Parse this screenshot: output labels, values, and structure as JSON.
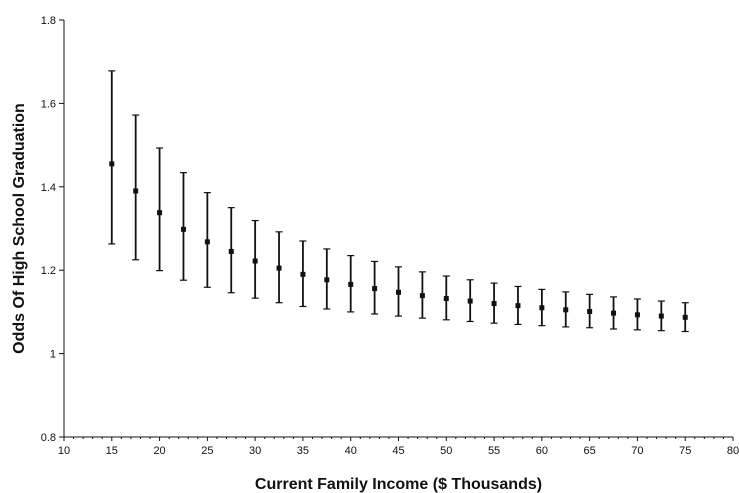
{
  "chart_data": {
    "type": "scatter",
    "title": "",
    "xlabel": "Current Family Income ($ Thousands)",
    "ylabel": "Odds Of High School Graduation",
    "xlim": [
      10,
      80
    ],
    "ylim": [
      0.8,
      1.8
    ],
    "x_ticks": [
      10,
      15,
      20,
      25,
      30,
      35,
      40,
      45,
      50,
      55,
      60,
      65,
      70,
      75,
      80
    ],
    "y_ticks": [
      {
        "value": 0.8,
        "label": "0.8"
      },
      {
        "value": 1.0,
        "label": "1"
      },
      {
        "value": 1.2,
        "label": "1.2"
      },
      {
        "value": 1.4,
        "label": "1.4"
      },
      {
        "value": 1.6,
        "label": "1.6"
      },
      {
        "value": 1.8,
        "label": "1.8"
      }
    ],
    "grid": false,
    "error_bars": true,
    "points": [
      {
        "x": 15,
        "y": 1.455,
        "lower": 1.263,
        "upper": 1.678
      },
      {
        "x": 17.5,
        "y": 1.39,
        "lower": 1.225,
        "upper": 1.572
      },
      {
        "x": 20,
        "y": 1.338,
        "lower": 1.199,
        "upper": 1.493
      },
      {
        "x": 22.5,
        "y": 1.298,
        "lower": 1.176,
        "upper": 1.434
      },
      {
        "x": 25,
        "y": 1.268,
        "lower": 1.159,
        "upper": 1.386
      },
      {
        "x": 27.5,
        "y": 1.245,
        "lower": 1.146,
        "upper": 1.35
      },
      {
        "x": 30,
        "y": 1.222,
        "lower": 1.133,
        "upper": 1.319
      },
      {
        "x": 32.5,
        "y": 1.205,
        "lower": 1.122,
        "upper": 1.292
      },
      {
        "x": 35,
        "y": 1.19,
        "lower": 1.113,
        "upper": 1.27
      },
      {
        "x": 37.5,
        "y": 1.177,
        "lower": 1.107,
        "upper": 1.251
      },
      {
        "x": 40,
        "y": 1.166,
        "lower": 1.1,
        "upper": 1.235
      },
      {
        "x": 42.5,
        "y": 1.156,
        "lower": 1.095,
        "upper": 1.221
      },
      {
        "x": 45,
        "y": 1.147,
        "lower": 1.09,
        "upper": 1.208
      },
      {
        "x": 47.5,
        "y": 1.139,
        "lower": 1.085,
        "upper": 1.196
      },
      {
        "x": 50,
        "y": 1.132,
        "lower": 1.081,
        "upper": 1.186
      },
      {
        "x": 52.5,
        "y": 1.126,
        "lower": 1.077,
        "upper": 1.177
      },
      {
        "x": 55,
        "y": 1.12,
        "lower": 1.073,
        "upper": 1.169
      },
      {
        "x": 57.5,
        "y": 1.115,
        "lower": 1.07,
        "upper": 1.161
      },
      {
        "x": 60,
        "y": 1.11,
        "lower": 1.067,
        "upper": 1.154
      },
      {
        "x": 62.5,
        "y": 1.105,
        "lower": 1.064,
        "upper": 1.148
      },
      {
        "x": 65,
        "y": 1.101,
        "lower": 1.062,
        "upper": 1.142
      },
      {
        "x": 67.5,
        "y": 1.097,
        "lower": 1.059,
        "upper": 1.136
      },
      {
        "x": 70,
        "y": 1.093,
        "lower": 1.057,
        "upper": 1.131
      },
      {
        "x": 72.5,
        "y": 1.09,
        "lower": 1.055,
        "upper": 1.126
      },
      {
        "x": 75,
        "y": 1.087,
        "lower": 1.053,
        "upper": 1.122
      }
    ]
  }
}
